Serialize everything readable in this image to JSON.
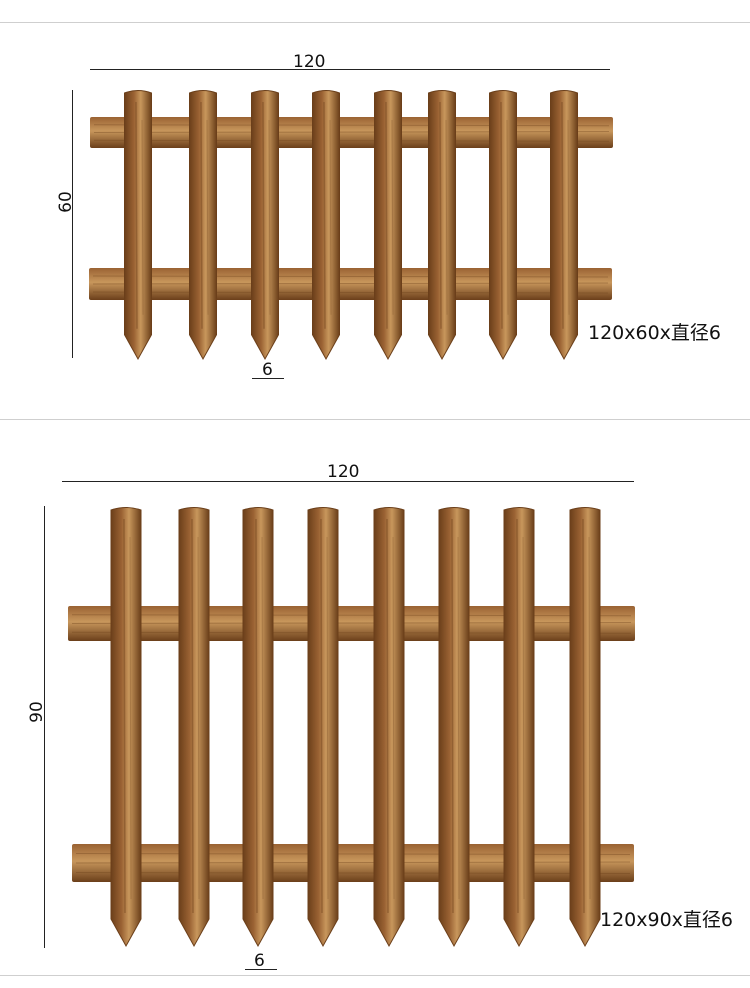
{
  "fence_60": {
    "width_label": "120",
    "height_label": "60",
    "picket_label": "6",
    "spec": "120x60x直径6"
  },
  "fence_90": {
    "width_label": "120",
    "height_label": "90",
    "picket_label": "6",
    "spec": "120x90x直径6"
  },
  "colors": {
    "wood_dark": "#6b3f1a",
    "wood_mid": "#9a6233",
    "wood_light": "#c8975c",
    "separator": "#cfcfcf"
  }
}
